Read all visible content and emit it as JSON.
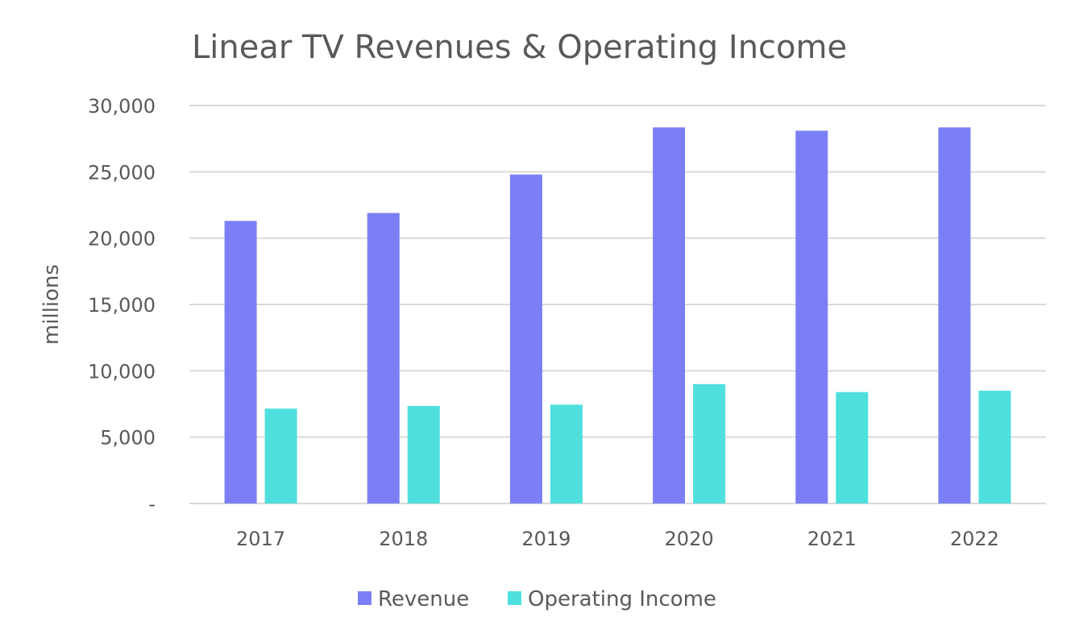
{
  "chart_data": {
    "type": "bar",
    "title": "Linear TV Revenues & Operating Income",
    "xlabel": "",
    "ylabel": "millions",
    "categories": [
      "2017",
      "2018",
      "2019",
      "2020",
      "2021",
      "2022"
    ],
    "series": [
      {
        "name": "Revenue",
        "color": "#7b7ff5",
        "values": [
          21300,
          21900,
          24800,
          28350,
          28100,
          28350
        ]
      },
      {
        "name": "Operating Income",
        "color": "#4fe0de",
        "values": [
          7150,
          7350,
          7450,
          9000,
          8400,
          8500
        ]
      }
    ],
    "ylim": [
      0,
      30000
    ],
    "yticks": [
      0,
      5000,
      10000,
      15000,
      20000,
      25000,
      30000
    ],
    "ytick_labels": [
      "-",
      "5,000",
      "10,000",
      "15,000",
      "20,000",
      "25,000",
      "30,000"
    ],
    "grid": true,
    "legend_position": "bottom"
  }
}
